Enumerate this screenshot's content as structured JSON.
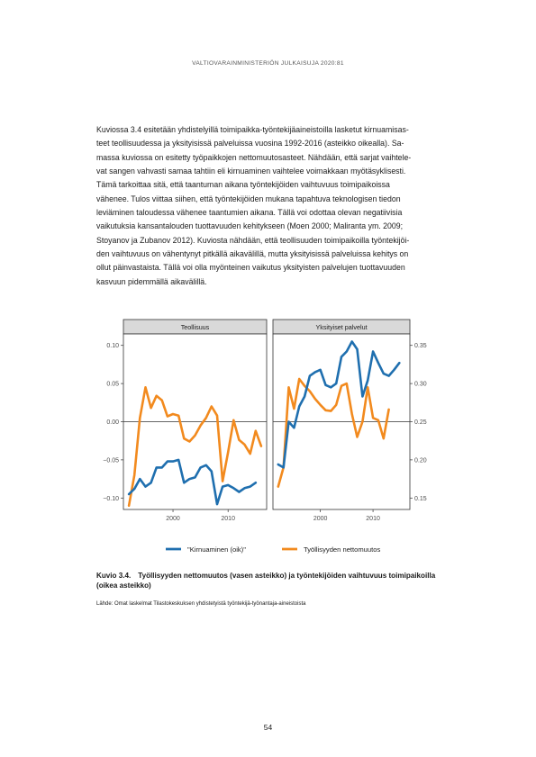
{
  "header": "VALTIOVARAINMINISTERIÖN JULKAISUJA 2020:81",
  "body_lines": [
    "Kuviossa 3.4 esitetään yhdistelyillä toimipaikka-työntekijäaineistoilla lasketut kirnuamisas-",
    "teet teollisuudessa ja yksityisissä palveluissa vuosina 1992-2016 (asteikko oikealla). Sa-",
    "massa kuviossa on esitetty työpaikkojen nettomuutosasteet. Nähdään, että sarjat vaihtele-",
    "vat sangen vahvasti samaa tahtiin eli kirnuaminen vaihtelee voimakkaan myötäsyklisesti.",
    "Tämä tarkoittaa sitä, että taantuman aikana työntekijöiden vaihtuvuus toimipaikoissa",
    "vähenee. Tulos viittaa siihen, että työntekijöiden mukana tapahtuva teknologisen tiedon",
    "leviäminen taloudessa vähenee taantumien aikana. Tällä voi odottaa olevan negatiivisia",
    "vaikutuksia kansantalouden tuottavuuden kehitykseen (Moen 2000; Maliranta ym. 2009;",
    "Stoyanov ja Zubanov 2012). Kuviosta nähdään, että teollisuuden toimipaikoilla työntekijöi-",
    "den vaihtuvuus on vähentynyt pitkällä aikavälillä, mutta yksityisissä palveluissa kehitys on",
    "ollut päinvastaista. Tällä voi olla myönteinen vaikutus yksityisten palvelujen tuottavuuden",
    "kasvuun pidemmällä aikavälillä."
  ],
  "caption": {
    "number": "Kuvio 3.4.",
    "line1": "Työllisyyden nettomuutos (vasen asteikko) ja työntekijöiden vaihtuvuus toimipaikoilla",
    "line2": "(oikea asteikko)"
  },
  "source": "Lähde: Omat laskelmat Tilastokeskuksen yhdistetyistä työntekijä-työnantaja-aineistoista",
  "page_number": "54",
  "chart_data": {
    "type": "line",
    "colors": {
      "churning": "#1f6faf",
      "net_change": "#f28a1e"
    },
    "legend": {
      "position": "bottom",
      "entries": [
        {
          "key": "churning",
          "label": "\"Kirnuaminen (oik)\""
        },
        {
          "key": "net_change",
          "label": "Työllisyyden nettomuutos"
        }
      ]
    },
    "left_axis": {
      "ylim": [
        -0.115,
        0.115
      ],
      "ticks": [
        -0.1,
        -0.05,
        0.0,
        0.05,
        0.1
      ],
      "tick_labels": [
        "−0.10",
        "−0.05",
        "0.00",
        "0.05",
        "0.10"
      ]
    },
    "right_axis": {
      "ylim": [
        0.135,
        0.365
      ],
      "ticks": [
        0.15,
        0.2,
        0.25,
        0.3,
        0.35
      ],
      "tick_labels": [
        "0.15",
        "0.20",
        "0.25",
        "0.30",
        "0.35"
      ]
    },
    "x_axis": {
      "xlim": [
        1991,
        2017
      ],
      "ticks": [
        2000,
        2010
      ],
      "tick_labels": [
        "2000",
        "2010"
      ]
    },
    "zero_line": 0,
    "panels": [
      {
        "title": "Teollisuus",
        "x": [
          1992,
          1993,
          1994,
          1995,
          1996,
          1997,
          1998,
          1999,
          2000,
          2001,
          2002,
          2003,
          2004,
          2005,
          2006,
          2007,
          2008,
          2009,
          2010,
          2011,
          2012,
          2013,
          2014,
          2015,
          2016
        ],
        "churning": [
          0.155,
          0.162,
          0.175,
          0.165,
          0.17,
          0.19,
          0.19,
          0.198,
          0.198,
          0.2,
          0.17,
          0.175,
          0.177,
          0.19,
          0.193,
          0.185,
          0.142,
          0.165,
          0.167,
          0.163,
          0.158,
          0.163,
          0.165,
          0.17,
          null
        ],
        "net_change": [
          -0.11,
          -0.07,
          0.005,
          0.045,
          0.018,
          0.034,
          0.028,
          0.007,
          0.01,
          0.008,
          -0.022,
          -0.026,
          -0.018,
          -0.005,
          0.005,
          0.02,
          0.008,
          -0.078,
          -0.04,
          0.002,
          -0.024,
          -0.03,
          -0.042,
          -0.012,
          -0.032
        ]
      },
      {
        "title": "Yksityiset palvelut",
        "x": [
          1992,
          1993,
          1994,
          1995,
          1996,
          1997,
          1998,
          1999,
          2000,
          2001,
          2002,
          2003,
          2004,
          2005,
          2006,
          2007,
          2008,
          2009,
          2010,
          2011,
          2012,
          2013,
          2014,
          2015,
          2016
        ],
        "churning": [
          0.194,
          0.19,
          0.25,
          0.242,
          0.27,
          0.283,
          0.31,
          0.315,
          0.318,
          0.298,
          0.295,
          0.3,
          0.335,
          0.342,
          0.355,
          0.345,
          0.283,
          0.304,
          0.342,
          0.327,
          0.313,
          0.31,
          0.318,
          0.327,
          null
        ],
        "net_change": [
          -0.085,
          -0.06,
          0.045,
          0.017,
          0.056,
          0.047,
          0.04,
          0.03,
          0.022,
          0.015,
          0.014,
          0.022,
          0.047,
          0.05,
          0.01,
          -0.02,
          0.0,
          0.045,
          0.005,
          0.002,
          -0.022,
          0.016,
          null,
          null,
          null
        ]
      }
    ]
  }
}
